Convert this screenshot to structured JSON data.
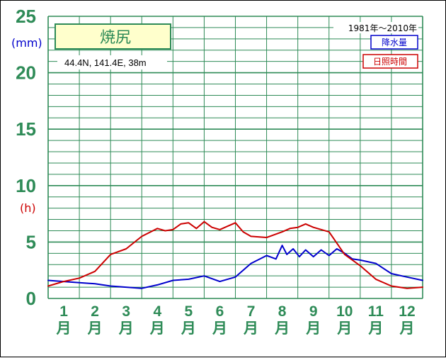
{
  "station": {
    "name": "焼尻",
    "coordinates": "44.4N,  141.4E,  38m",
    "period": "1981年〜2010年"
  },
  "units": {
    "precip": "(mm)",
    "sun": "(h)"
  },
  "legend": {
    "precip": "降水量",
    "sun": "日照時間"
  },
  "colors": {
    "grid": "#2e8b57",
    "precip": "#0000cc",
    "sun": "#cc0000",
    "station_box_bg": "#ffffcc",
    "axis_text": "#2e8b57"
  },
  "chart_data": {
    "type": "line",
    "title": "焼尻",
    "y_ticks": [
      0,
      5,
      10,
      15,
      20,
      25
    ],
    "ylim": [
      0,
      25
    ],
    "x_ticks": [
      "1",
      "2",
      "3",
      "4",
      "5",
      "6",
      "7",
      "8",
      "9",
      "10",
      "11",
      "12"
    ],
    "x_unit": "月",
    "xlim": [
      0.5,
      12.5
    ],
    "grid": true,
    "legend_position": "top-right",
    "series": [
      {
        "name": "降水量",
        "color": "#0000cc",
        "x": [
          0.5,
          1.0,
          1.5,
          2.0,
          2.5,
          3.0,
          3.5,
          4.0,
          4.5,
          5.0,
          5.5,
          6.0,
          6.5,
          7.0,
          7.5,
          7.8,
          8.0,
          8.15,
          8.35,
          8.55,
          8.75,
          9.0,
          9.25,
          9.5,
          9.75,
          10.0,
          10.25,
          10.5,
          11.0,
          11.5,
          12.0,
          12.5
        ],
        "y": [
          1.6,
          1.5,
          1.4,
          1.3,
          1.1,
          1.0,
          0.9,
          1.2,
          1.6,
          1.7,
          2.0,
          1.5,
          1.9,
          3.1,
          3.8,
          3.5,
          4.7,
          3.9,
          4.4,
          3.7,
          4.3,
          3.7,
          4.3,
          3.8,
          4.4,
          4.0,
          3.5,
          3.4,
          3.1,
          2.2,
          1.9,
          1.6
        ]
      },
      {
        "name": "日照時間",
        "color": "#cc0000",
        "x": [
          0.5,
          1.0,
          1.5,
          2.0,
          2.5,
          3.0,
          3.5,
          4.0,
          4.25,
          4.5,
          4.75,
          5.0,
          5.25,
          5.5,
          5.75,
          6.0,
          6.25,
          6.5,
          6.75,
          7.0,
          7.5,
          8.0,
          8.25,
          8.5,
          8.75,
          9.0,
          9.5,
          10.0,
          10.5,
          11.0,
          11.5,
          12.0,
          12.5
        ],
        "y": [
          1.1,
          1.5,
          1.8,
          2.4,
          3.9,
          4.4,
          5.5,
          6.2,
          6.0,
          6.1,
          6.6,
          6.7,
          6.2,
          6.8,
          6.3,
          6.1,
          6.4,
          6.7,
          5.9,
          5.5,
          5.4,
          5.9,
          6.2,
          6.3,
          6.6,
          6.3,
          5.9,
          3.9,
          2.9,
          1.7,
          1.1,
          0.9,
          1.0
        ]
      }
    ]
  }
}
